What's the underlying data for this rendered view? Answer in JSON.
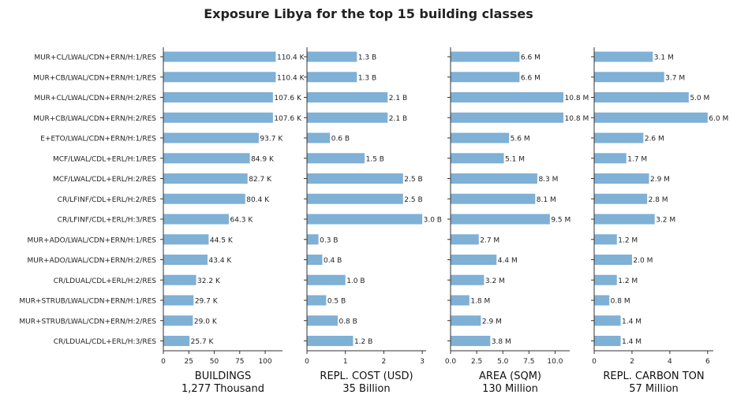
{
  "title": "Exposure Libya for the top 15 building classes",
  "chart_data": {
    "type": "bar",
    "orientation": "horizontal",
    "title": "Exposure Libya for the top 15 building classes",
    "bar_color": "#7fb0d5",
    "categories": [
      "MUR+CL/LWAL/CDN+ERN/H:1/RES",
      "MUR+CB/LWAL/CDN+ERN/H:1/RES",
      "MUR+CL/LWAL/CDN+ERN/H:2/RES",
      "MUR+CB/LWAL/CDN+ERN/H:2/RES",
      "E+ETO/LWAL/CDN+ERN/H:1/RES",
      "MCF/LWAL/CDL+ERL/H:1/RES",
      "MCF/LWAL/CDL+ERL/H:2/RES",
      "CR/LFINF/CDL+ERL/H:2/RES",
      "CR/LFINF/CDL+ERL/H:3/RES",
      "MUR+ADO/LWAL/CDN+ERN/H:1/RES",
      "MUR+ADO/LWAL/CDN+ERN/H:2/RES",
      "CR/LDUAL/CDL+ERL/H:2/RES",
      "MUR+STRUB/LWAL/CDN+ERN/H:1/RES",
      "MUR+STRUB/LWAL/CDN+ERN/H:2/RES",
      "CR/LDUAL/CDL+ERL/H:3/RES"
    ],
    "panels": [
      {
        "xlabel": "BUILDINGS",
        "total": "1,277 Thousand",
        "xlim": [
          0,
          117
        ],
        "ticks": [
          0,
          25,
          50,
          75,
          100
        ],
        "tick_labels": [
          "0",
          "25",
          "50",
          "75",
          "100"
        ],
        "values": [
          110.4,
          110.4,
          107.6,
          107.6,
          93.7,
          84.9,
          82.7,
          80.4,
          64.3,
          44.5,
          43.4,
          32.2,
          29.7,
          29.0,
          25.7
        ],
        "value_labels": [
          "110.4 K",
          "110.4 K",
          "107.6 K",
          "107.6 K",
          "93.7 K",
          "84.9 K",
          "82.7 K",
          "80.4 K",
          "64.3 K",
          "44.5 K",
          "43.4 K",
          "32.2 K",
          "29.7 K",
          "29.0 K",
          "25.7 K"
        ]
      },
      {
        "xlabel": "REPL. COST (USD)",
        "total": "35 Billion",
        "xlim": [
          0,
          3.1
        ],
        "ticks": [
          0,
          1,
          2,
          3
        ],
        "tick_labels": [
          "0",
          "1",
          "2",
          "3"
        ],
        "values": [
          1.3,
          1.3,
          2.1,
          2.1,
          0.6,
          1.5,
          2.5,
          2.5,
          3.0,
          0.3,
          0.4,
          1.0,
          0.5,
          0.8,
          1.2
        ],
        "value_labels": [
          "1.3 B",
          "1.3 B",
          "2.1 B",
          "2.1 B",
          "0.6 B",
          "1.5 B",
          "2.5 B",
          "2.5 B",
          "3.0 B",
          "0.3 B",
          "0.4 B",
          "1.0 B",
          "0.5 B",
          "0.8 B",
          "1.2 B"
        ]
      },
      {
        "xlabel": "AREA (SQM)",
        "total": "130 Million",
        "xlim": [
          0,
          11.4
        ],
        "ticks": [
          0,
          2.5,
          5,
          7.5,
          10
        ],
        "tick_labels": [
          "0.0",
          "2.5",
          "5.0",
          "7.5",
          "10.0"
        ],
        "values": [
          6.6,
          6.6,
          10.8,
          10.8,
          5.6,
          5.1,
          8.3,
          8.1,
          9.5,
          2.7,
          4.4,
          3.2,
          1.8,
          2.9,
          3.8
        ],
        "value_labels": [
          "6.6 M",
          "6.6 M",
          "10.8 M",
          "10.8 M",
          "5.6 M",
          "5.1 M",
          "8.3 M",
          "8.1 M",
          "9.5 M",
          "2.7 M",
          "4.4 M",
          "3.2 M",
          "1.8 M",
          "2.9 M",
          "3.8 M"
        ]
      },
      {
        "xlabel": "REPL. CARBON TON",
        "total": "57 Million",
        "xlim": [
          0,
          6.3
        ],
        "ticks": [
          0,
          2,
          4,
          6
        ],
        "tick_labels": [
          "0",
          "2",
          "4",
          "6"
        ],
        "values": [
          3.1,
          3.7,
          5.0,
          6.0,
          2.6,
          1.7,
          2.9,
          2.8,
          3.2,
          1.2,
          2.0,
          1.2,
          0.8,
          1.4,
          1.4
        ],
        "value_labels": [
          "3.1 M",
          "3.7 M",
          "5.0 M",
          "6.0 M",
          "2.6 M",
          "1.7 M",
          "2.9 M",
          "2.8 M",
          "3.2 M",
          "1.2 M",
          "2.0 M",
          "1.2 M",
          "0.8 M",
          "1.4 M",
          "1.4 M"
        ]
      }
    ]
  }
}
